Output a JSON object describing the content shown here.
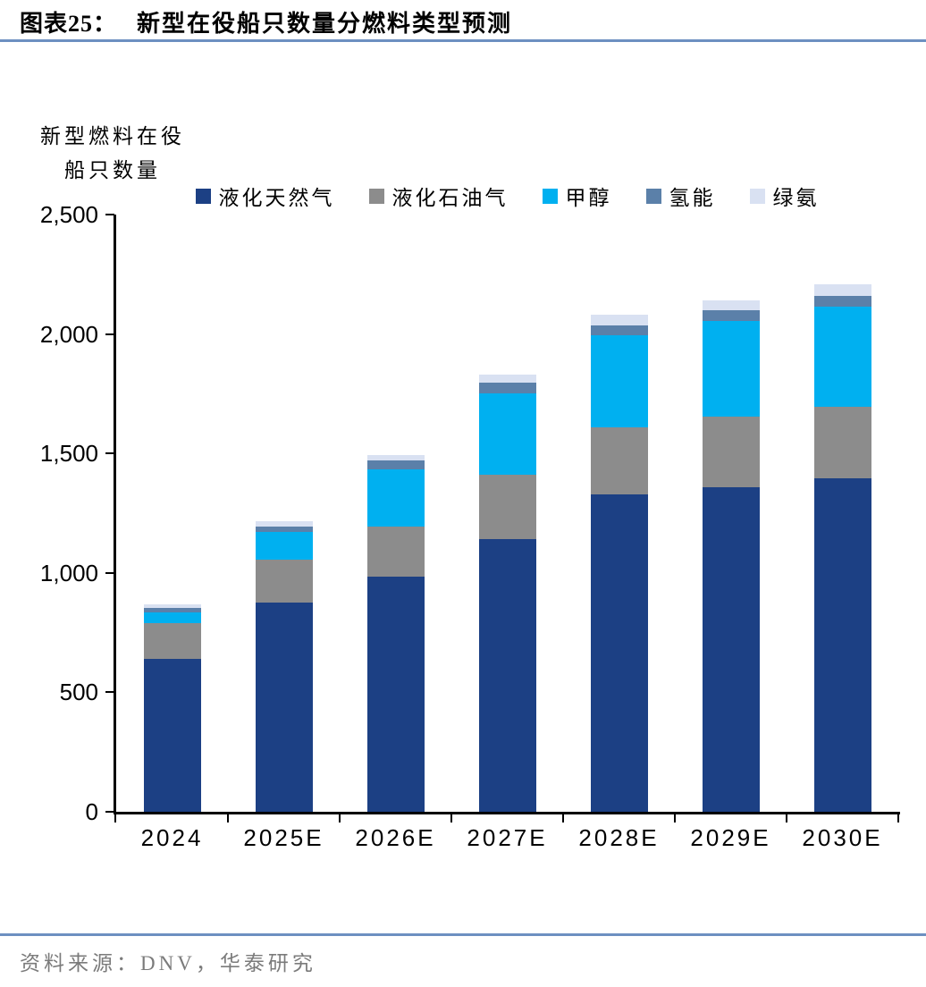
{
  "header": {
    "tag": "图表25：",
    "title": "新型在役船只数量分燃料类型预测"
  },
  "y_axis_unit": {
    "line1": "新型燃料在役",
    "line2": "船只数量"
  },
  "footer": {
    "source": "资料来源：DNV，华泰研究"
  },
  "colors": {
    "lng": "#1c4084",
    "lpg": "#8c8c8c",
    "methanol": "#00b0f0",
    "hydrogen": "#5b80a9",
    "ammonia": "#d9e1f2",
    "rule": "#6d90c1",
    "axis": "#000000",
    "source_text": "#7b7b7b"
  },
  "chart_data": {
    "type": "bar",
    "stacked": true,
    "title": "新型在役船只数量分燃料类型预测",
    "ylabel": "新型燃料在役船只数量",
    "xlabel": "",
    "categories": [
      "2024",
      "2025E",
      "2026E",
      "2027E",
      "2028E",
      "2029E",
      "2030E"
    ],
    "series": [
      {
        "name": "液化天然气",
        "color": "#1c4084",
        "values": [
          640,
          875,
          985,
          1140,
          1330,
          1360,
          1395
        ]
      },
      {
        "name": "液化石油气",
        "color": "#8c8c8c",
        "values": [
          150,
          180,
          210,
          270,
          280,
          295,
          300
        ]
      },
      {
        "name": "甲醇",
        "color": "#00b0f0",
        "values": [
          45,
          115,
          240,
          340,
          385,
          400,
          420
        ]
      },
      {
        "name": "氢能",
        "color": "#5b80a9",
        "values": [
          20,
          25,
          35,
          45,
          40,
          45,
          45
        ]
      },
      {
        "name": "绿氨",
        "color": "#d9e1f2",
        "values": [
          15,
          20,
          25,
          35,
          45,
          40,
          50
        ]
      }
    ],
    "totals": [
      870,
      1215,
      1495,
      1830,
      2080,
      2140,
      2210
    ],
    "ylim": [
      0,
      2500
    ],
    "yticks": [
      0,
      500,
      1000,
      1500,
      2000,
      2500
    ],
    "ytick_labels": [
      "0",
      "500",
      "1,000",
      "1,500",
      "2,000",
      "2,500"
    ],
    "grid": false,
    "legend_position": "top"
  }
}
